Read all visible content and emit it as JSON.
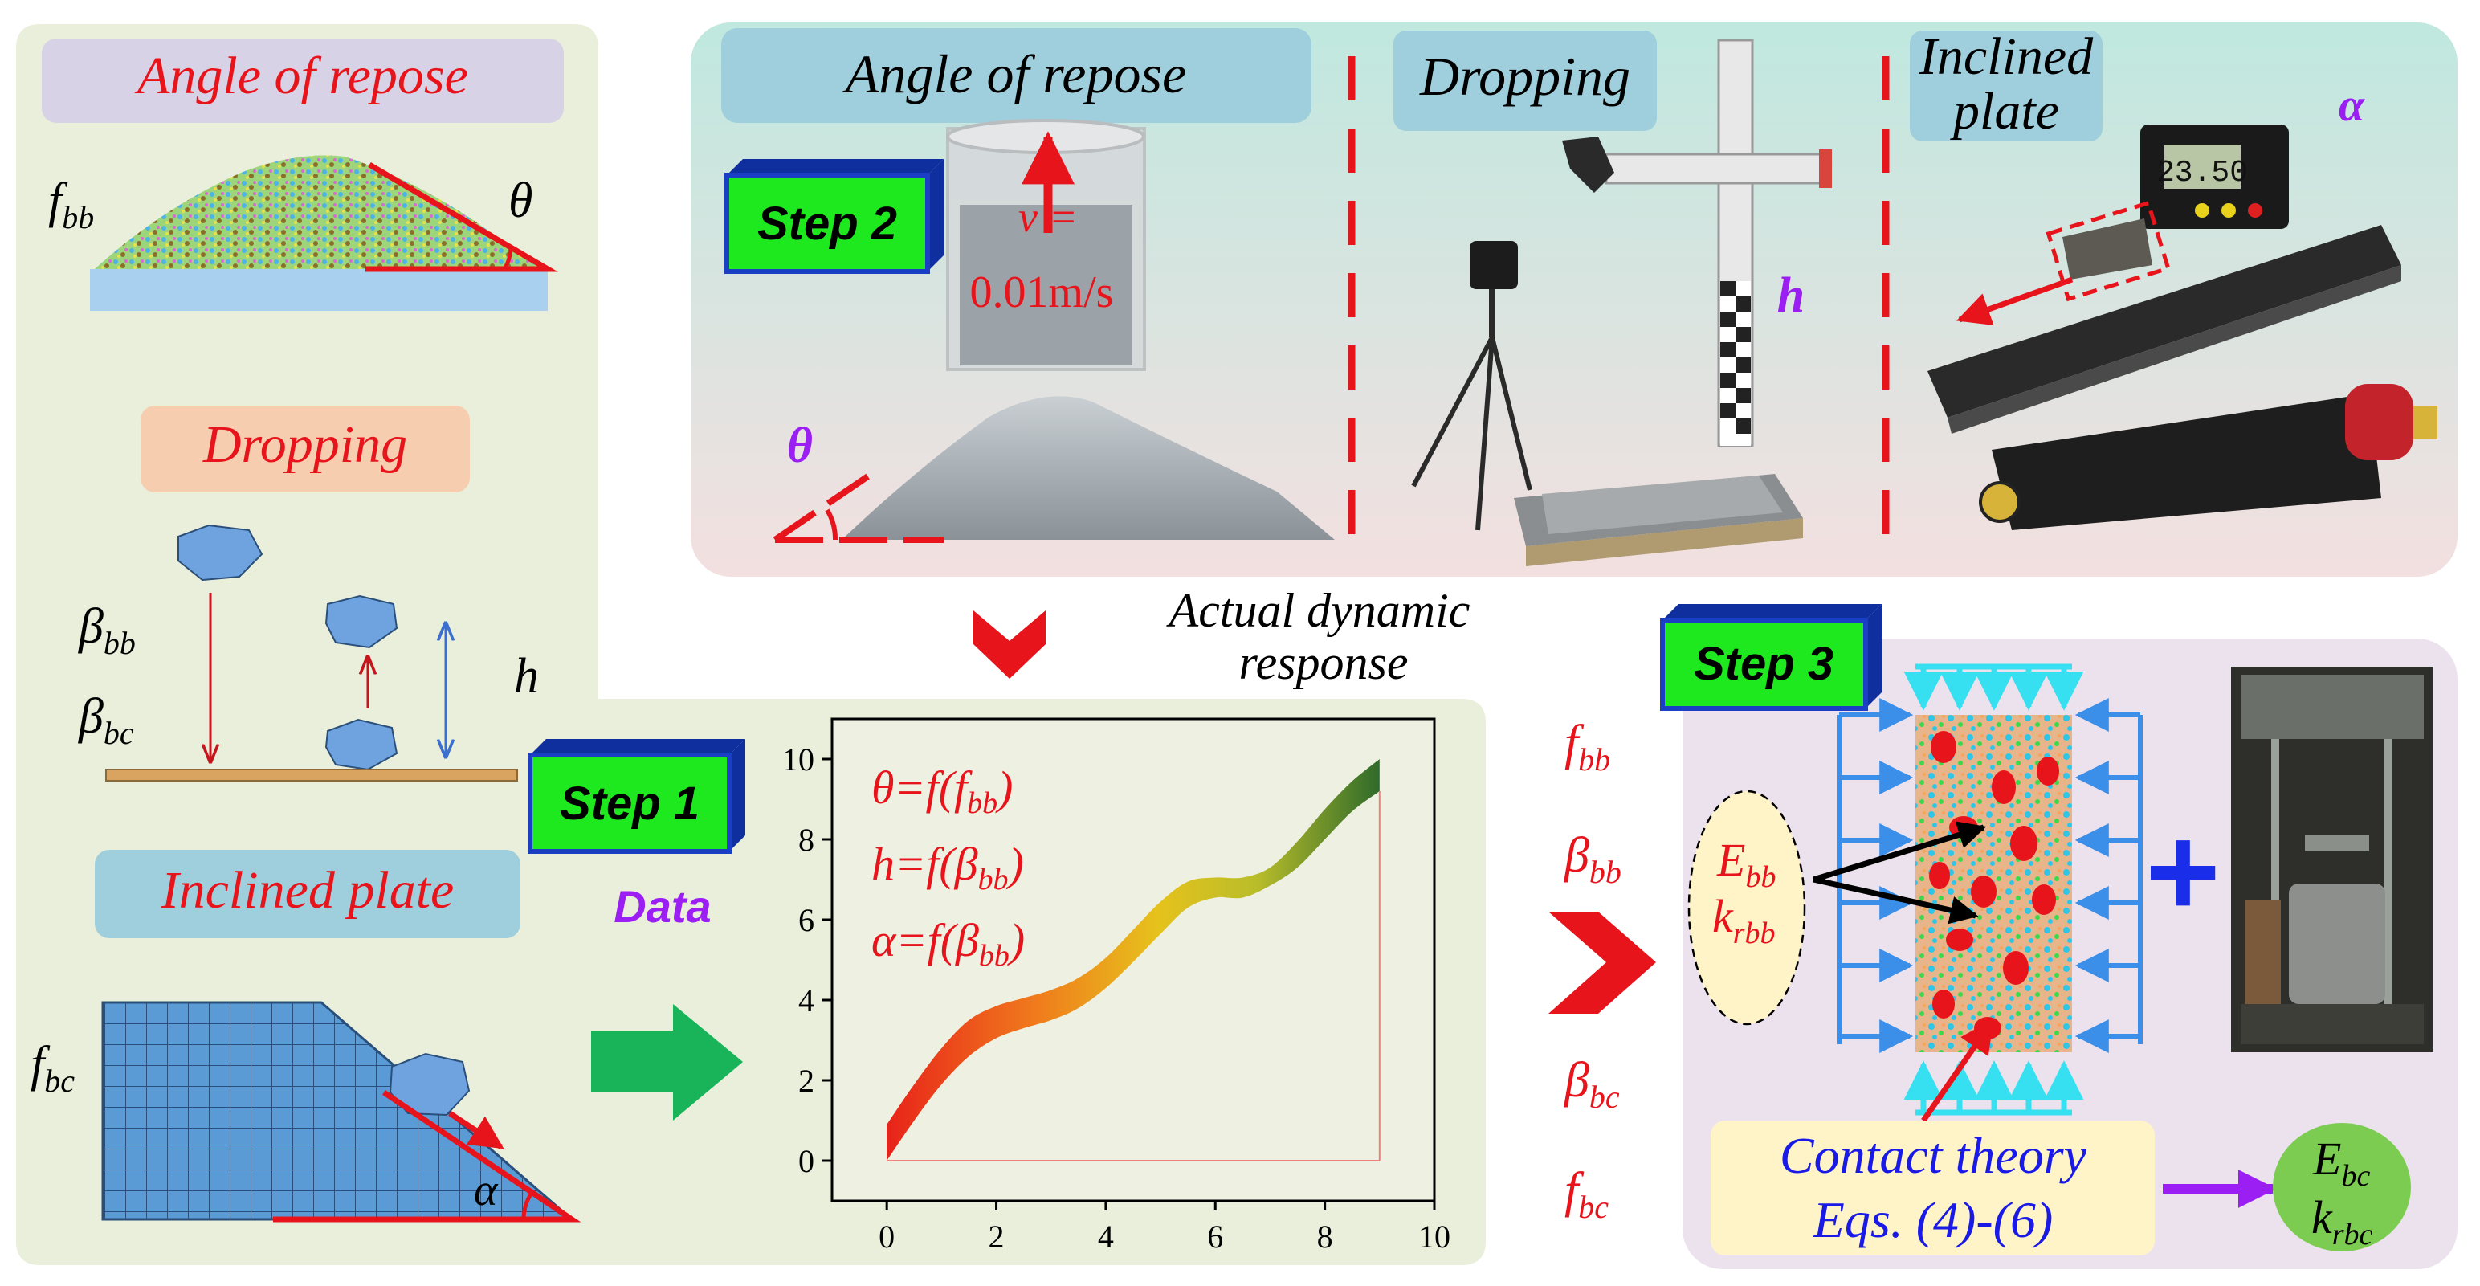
{
  "colors": {
    "left_panel": "#e9efdb",
    "step2_panel_top": "#bfe8df",
    "step2_panel_bottom": "#f3e0e0",
    "step3_panel": "#ece2ee",
    "red": "#e8141c",
    "purple": "#9b1ff2",
    "step_box": "#1ee81e",
    "step_box_side": "#1b3fc4",
    "green_arrow": "#19b35a",
    "blue_text": "#1a1ae6",
    "particle_blue": "#6fa3df",
    "label_box_teal": "#9fcfdc",
    "label_box_peach": "#f7cdb0",
    "label_box_lavender": "#d8d2e6",
    "contact_box": "#fff3c8",
    "ellipse_fill": "#fff3c8",
    "green_ellipse": "#7dcc52"
  },
  "left_panel": {
    "angle_label": "Angle of repose",
    "f_bb": "f",
    "f_bb_sub": "bb",
    "theta": "θ",
    "dropping_label": "Dropping",
    "beta": "β",
    "beta_bb_sub": "bb",
    "beta_bc_sub": "bc",
    "h": "h",
    "inclined_label": "Inclined plate",
    "f_bc": "f",
    "f_bc_sub": "bc",
    "alpha": "α"
  },
  "step1": {
    "label": "Step 1",
    "data_label": "Data"
  },
  "step2": {
    "label": "Step 2",
    "angle_label": "Angle of repose",
    "dropping_label": "Dropping",
    "inclined_label_line1": "Inclined",
    "inclined_label_line2": "plate",
    "v_line1": "v =",
    "v_line2": "0.01m/s",
    "theta": "θ",
    "h": "h",
    "alpha": "α",
    "protractor_reading": "23.50"
  },
  "middle": {
    "actual_line1": "Actual dynamic",
    "actual_line2": "response"
  },
  "params": [
    {
      "sym": "f",
      "sub": "bb"
    },
    {
      "sym": "β",
      "sub": "bb"
    },
    {
      "sym": "β",
      "sub": "bc"
    },
    {
      "sym": "f",
      "sub": "bc"
    }
  ],
  "step3": {
    "label": "Step 3",
    "e_bb": "E",
    "e_bb_sub": "bb",
    "k_rbb": "k",
    "k_rbb_sub": "rbb",
    "contact_line1": "Contact theory",
    "contact_line2": "Eqs. (4)-(6)",
    "e_bc": "E",
    "e_bc_sub": "bc",
    "k_rbc": "k",
    "k_rbc_sub": "rbc",
    "plus": "+"
  },
  "chart_data": {
    "type": "area",
    "xlim": [
      -1,
      10
    ],
    "ylim": [
      -1,
      11
    ],
    "xticks": [
      0,
      2,
      4,
      6,
      8,
      10
    ],
    "yticks": [
      0,
      2,
      4,
      6,
      8,
      10
    ],
    "equations": [
      {
        "lhs": "θ=f(",
        "arg": "f",
        "sub": "bb",
        "rhs": ")"
      },
      {
        "lhs": "h=f(",
        "arg": "β",
        "sub": "bb",
        "rhs": ")"
      },
      {
        "lhs": "α=f(",
        "arg": "β",
        "sub": "bb",
        "rhs": ")"
      }
    ],
    "band_x": [
      0,
      0.5,
      1,
      1.5,
      2,
      2.5,
      3,
      3.5,
      4,
      4.5,
      5,
      5.5,
      6,
      6.5,
      7,
      7.5,
      8,
      8.5,
      9
    ],
    "band_upper": [
      0.9,
      1.9,
      2.8,
      3.5,
      3.85,
      4.05,
      4.25,
      4.55,
      5.05,
      5.75,
      6.45,
      6.95,
      7.05,
      7.05,
      7.3,
      7.95,
      8.75,
      9.45,
      10.0
    ],
    "band_lower": [
      0.0,
      1.0,
      1.9,
      2.6,
      3.05,
      3.3,
      3.5,
      3.8,
      4.3,
      4.95,
      5.65,
      6.3,
      6.55,
      6.55,
      6.85,
      7.3,
      8.0,
      8.7,
      9.2
    ]
  }
}
